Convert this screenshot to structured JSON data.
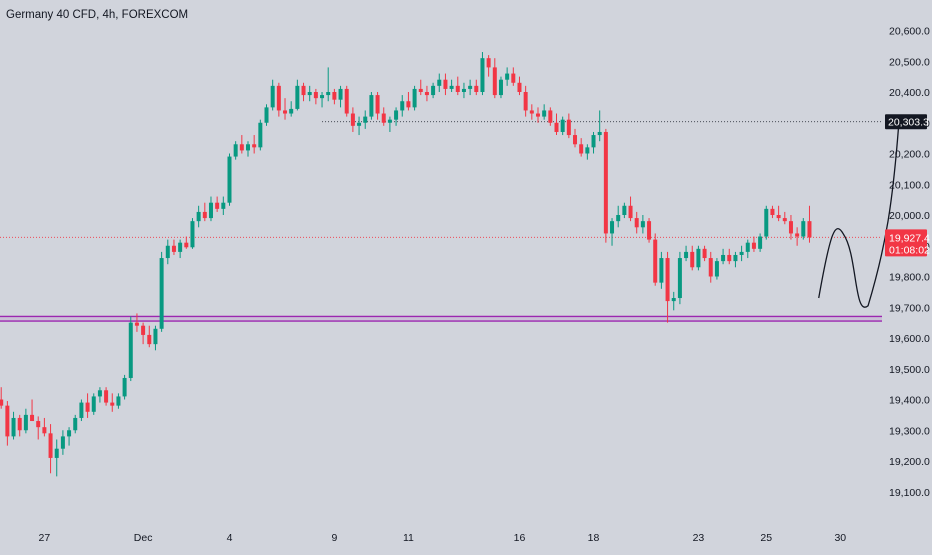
{
  "title": "Germany 40 CFD, 4h, FOREXCOM",
  "colors": {
    "background": "#d1d4dc",
    "up": "#089981",
    "down": "#f23645",
    "support_line": "#9c27b0",
    "text": "#131722",
    "drawing": "#131722"
  },
  "chart_data": {
    "type": "candlestick",
    "title": "Germany 40 CFD, 4h, FOREXCOM",
    "ylim": [
      19050,
      20650
    ],
    "y_ticks": [
      "20,600.0",
      "20,500.0",
      "20,400.0",
      "20,300.0",
      "20,200.0",
      "20,100.0",
      "20,000.0",
      "19,900.0",
      "19,800.0",
      "19,700.0",
      "19,600.0",
      "19,500.0",
      "19,400.0",
      "19,300.0",
      "19,200.0",
      "19,100.0"
    ],
    "y_tick_values": [
      20600,
      20500,
      20400,
      20300,
      20200,
      20100,
      20000,
      19900,
      19800,
      19700,
      19600,
      19500,
      19400,
      19300,
      19200,
      19100
    ],
    "x_tick_labels": [
      "27",
      "Dec",
      "4",
      "9",
      "11",
      "16",
      "18",
      "23",
      "25",
      "30"
    ],
    "x_tick_bar_index": [
      7,
      23,
      37,
      54,
      66,
      84,
      96,
      113,
      124,
      136
    ],
    "current_price": {
      "value": 19927.4,
      "label": "19,927.4",
      "countdown": "01:08:02"
    },
    "target_level": {
      "value": 20303.3,
      "label": "20,303.3"
    },
    "support_zone": [
      19655,
      19670
    ],
    "candles": [
      [
        19400,
        19440,
        19370,
        19380
      ],
      [
        19380,
        19395,
        19250,
        19280
      ],
      [
        19280,
        19360,
        19270,
        19340
      ],
      [
        19340,
        19350,
        19280,
        19300
      ],
      [
        19300,
        19370,
        19290,
        19350
      ],
      [
        19350,
        19400,
        19330,
        19330
      ],
      [
        19330,
        19345,
        19270,
        19310
      ],
      [
        19310,
        19340,
        19280,
        19290
      ],
      [
        19290,
        19320,
        19160,
        19210
      ],
      [
        19210,
        19270,
        19150,
        19240
      ],
      [
        19240,
        19300,
        19220,
        19280
      ],
      [
        19280,
        19310,
        19250,
        19300
      ],
      [
        19300,
        19350,
        19290,
        19340
      ],
      [
        19340,
        19400,
        19330,
        19390
      ],
      [
        19390,
        19420,
        19340,
        19360
      ],
      [
        19360,
        19420,
        19350,
        19410
      ],
      [
        19410,
        19440,
        19390,
        19430
      ],
      [
        19430,
        19440,
        19380,
        19390
      ],
      [
        19390,
        19420,
        19360,
        19380
      ],
      [
        19380,
        19420,
        19370,
        19410
      ],
      [
        19410,
        19480,
        19400,
        19470
      ],
      [
        19470,
        19670,
        19460,
        19650
      ],
      [
        19650,
        19680,
        19620,
        19640
      ],
      [
        19640,
        19650,
        19580,
        19610
      ],
      [
        19610,
        19640,
        19570,
        19580
      ],
      [
        19580,
        19640,
        19560,
        19630
      ],
      [
        19630,
        19880,
        19620,
        19860
      ],
      [
        19860,
        19920,
        19840,
        19900
      ],
      [
        19900,
        19920,
        19870,
        19880
      ],
      [
        19880,
        19920,
        19860,
        19910
      ],
      [
        19910,
        19930,
        19890,
        19895
      ],
      [
        19895,
        19990,
        19890,
        19980
      ],
      [
        19980,
        20030,
        19960,
        20010
      ],
      [
        20010,
        20040,
        19980,
        19990
      ],
      [
        19990,
        20060,
        19980,
        20040
      ],
      [
        20040,
        20060,
        20010,
        20020
      ],
      [
        20020,
        20060,
        20000,
        20040
      ],
      [
        20040,
        20200,
        20030,
        20190
      ],
      [
        20190,
        20240,
        20180,
        20230
      ],
      [
        20230,
        20260,
        20200,
        20210
      ],
      [
        20210,
        20240,
        20190,
        20230
      ],
      [
        20230,
        20260,
        20200,
        20220
      ],
      [
        20220,
        20310,
        20210,
        20300
      ],
      [
        20300,
        20360,
        20290,
        20350
      ],
      [
        20350,
        20440,
        20340,
        20420
      ],
      [
        20420,
        20430,
        20320,
        20340
      ],
      [
        20340,
        20380,
        20310,
        20330
      ],
      [
        20330,
        20370,
        20320,
        20345
      ],
      [
        20345,
        20440,
        20340,
        20420
      ],
      [
        20420,
        20430,
        20370,
        20390
      ],
      [
        20390,
        20420,
        20370,
        20400
      ],
      [
        20400,
        20410,
        20360,
        20380
      ],
      [
        20380,
        20400,
        20350,
        20390
      ],
      [
        20390,
        20480,
        20370,
        20400
      ],
      [
        20400,
        20410,
        20360,
        20375
      ],
      [
        20375,
        20420,
        20350,
        20410
      ],
      [
        20410,
        20420,
        20320,
        20330
      ],
      [
        20330,
        20350,
        20270,
        20290
      ],
      [
        20290,
        20320,
        20260,
        20300
      ],
      [
        20300,
        20340,
        20280,
        20320
      ],
      [
        20320,
        20400,
        20310,
        20390
      ],
      [
        20390,
        20400,
        20310,
        20330
      ],
      [
        20330,
        20350,
        20290,
        20300
      ],
      [
        20300,
        20320,
        20270,
        20310
      ],
      [
        20310,
        20350,
        20290,
        20340
      ],
      [
        20340,
        20390,
        20320,
        20370
      ],
      [
        20370,
        20400,
        20340,
        20350
      ],
      [
        20350,
        20420,
        20340,
        20410
      ],
      [
        20410,
        20440,
        20390,
        20400
      ],
      [
        20400,
        20420,
        20370,
        20390
      ],
      [
        20390,
        20430,
        20380,
        20420
      ],
      [
        20420,
        20460,
        20400,
        20440
      ],
      [
        20440,
        20460,
        20390,
        20410
      ],
      [
        20410,
        20440,
        20400,
        20420
      ],
      [
        20420,
        20450,
        20390,
        20400
      ],
      [
        20400,
        20430,
        20380,
        20410
      ],
      [
        20410,
        20440,
        20390,
        20420
      ],
      [
        20420,
        20440,
        20390,
        20400
      ],
      [
        20400,
        20530,
        20390,
        20510
      ],
      [
        20510,
        20520,
        20450,
        20480
      ],
      [
        20480,
        20510,
        20380,
        20390
      ],
      [
        20390,
        20450,
        20380,
        20440
      ],
      [
        20440,
        20480,
        20420,
        20460
      ],
      [
        20460,
        20480,
        20420,
        20430
      ],
      [
        20430,
        20450,
        20390,
        20400
      ],
      [
        20400,
        20420,
        20320,
        20340
      ],
      [
        20340,
        20360,
        20310,
        20330
      ],
      [
        20330,
        20350,
        20300,
        20320
      ],
      [
        20320,
        20360,
        20310,
        20340
      ],
      [
        20340,
        20350,
        20290,
        20300
      ],
      [
        20300,
        20330,
        20260,
        20270
      ],
      [
        20270,
        20320,
        20260,
        20310
      ],
      [
        20310,
        20330,
        20250,
        20260
      ],
      [
        20260,
        20280,
        20220,
        20230
      ],
      [
        20230,
        20250,
        20190,
        20200
      ],
      [
        20200,
        20230,
        20180,
        20220
      ],
      [
        20220,
        20270,
        20200,
        20260
      ],
      [
        20260,
        20340,
        20240,
        20270
      ],
      [
        20270,
        20280,
        19910,
        19940
      ],
      [
        19940,
        19990,
        19900,
        19980
      ],
      [
        19980,
        20030,
        19960,
        20000
      ],
      [
        20000,
        20040,
        19990,
        20030
      ],
      [
        20030,
        20060,
        19980,
        19990
      ],
      [
        19990,
        20010,
        19940,
        19960
      ],
      [
        19960,
        20000,
        19940,
        19980
      ],
      [
        19980,
        19990,
        19910,
        19920
      ],
      [
        19920,
        19940,
        19770,
        19780
      ],
      [
        19780,
        19880,
        19760,
        19860
      ],
      [
        19860,
        19880,
        19650,
        19720
      ],
      [
        19720,
        19750,
        19690,
        19730
      ],
      [
        19730,
        19880,
        19710,
        19860
      ],
      [
        19860,
        19900,
        19850,
        19880
      ],
      [
        19880,
        19900,
        19820,
        19830
      ],
      [
        19830,
        19900,
        19820,
        19890
      ],
      [
        19890,
        19900,
        19850,
        19860
      ],
      [
        19860,
        19880,
        19780,
        19800
      ],
      [
        19800,
        19860,
        19790,
        19850
      ],
      [
        19850,
        19890,
        19840,
        19870
      ],
      [
        19870,
        19890,
        19840,
        19850
      ],
      [
        19850,
        19880,
        19830,
        19870
      ],
      [
        19870,
        19900,
        19850,
        19880
      ],
      [
        19880,
        19920,
        19860,
        19910
      ],
      [
        19910,
        19930,
        19880,
        19890
      ],
      [
        19890,
        19940,
        19880,
        19930
      ],
      [
        19930,
        20030,
        19920,
        20020
      ],
      [
        20020,
        20030,
        19990,
        20000
      ],
      [
        20000,
        20030,
        19980,
        19990
      ],
      [
        19990,
        20010,
        19970,
        19980
      ],
      [
        19980,
        20000,
        19920,
        19940
      ],
      [
        19940,
        19960,
        19900,
        19930
      ],
      [
        19930,
        19990,
        19920,
        19980
      ],
      [
        19980,
        20030,
        19910,
        19927
      ]
    ],
    "forecast_path": [
      {
        "bar": 132.5,
        "value": 19730
      },
      {
        "bar": 136.5,
        "value": 19938
      },
      {
        "bar": 140.5,
        "value": 19705
      },
      {
        "bar": 145.5,
        "value": 20303.3
      }
    ]
  }
}
